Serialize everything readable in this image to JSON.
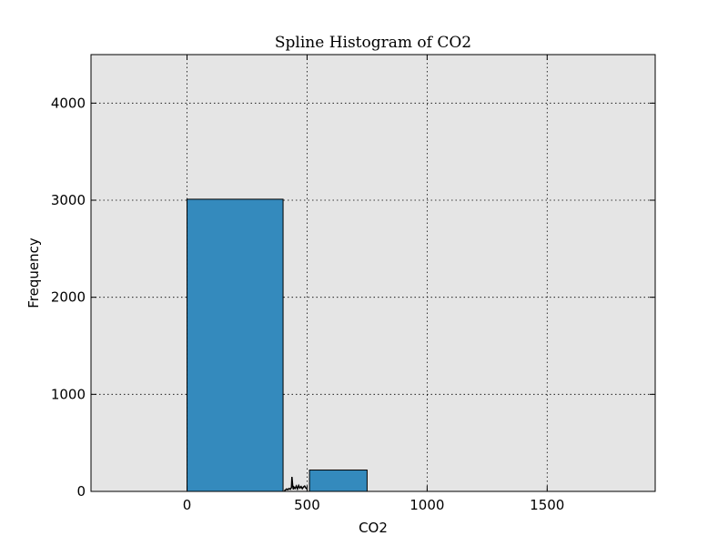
{
  "chart_data": {
    "type": "bar",
    "title": "Spline Histogram of CO2",
    "xlabel": "CO2",
    "ylabel": "Frequency",
    "xlim": [
      -400,
      1950
    ],
    "ylim": [
      0,
      4500
    ],
    "grid": true,
    "x_ticks": [
      0,
      500,
      1000,
      1500
    ],
    "y_ticks": [
      0,
      1000,
      2000,
      3000,
      4000
    ],
    "bins": [
      {
        "start": 0,
        "end": 400,
        "value": 3010
      },
      {
        "start": 510,
        "end": 750,
        "value": 220
      }
    ],
    "spline": {
      "x": [
        405,
        410,
        415,
        420,
        425,
        430,
        435,
        437,
        440,
        443,
        445,
        450,
        455,
        460,
        465,
        470,
        475,
        480,
        485,
        490,
        495,
        500
      ],
      "y": [
        5,
        15,
        25,
        18,
        30,
        22,
        40,
        150,
        60,
        20,
        45,
        30,
        55,
        25,
        60,
        35,
        50,
        28,
        45,
        55,
        35,
        25
      ]
    },
    "colors": {
      "bar": "#348abd",
      "axes_bg": "#e5e5e5",
      "edge": "#000000"
    }
  }
}
